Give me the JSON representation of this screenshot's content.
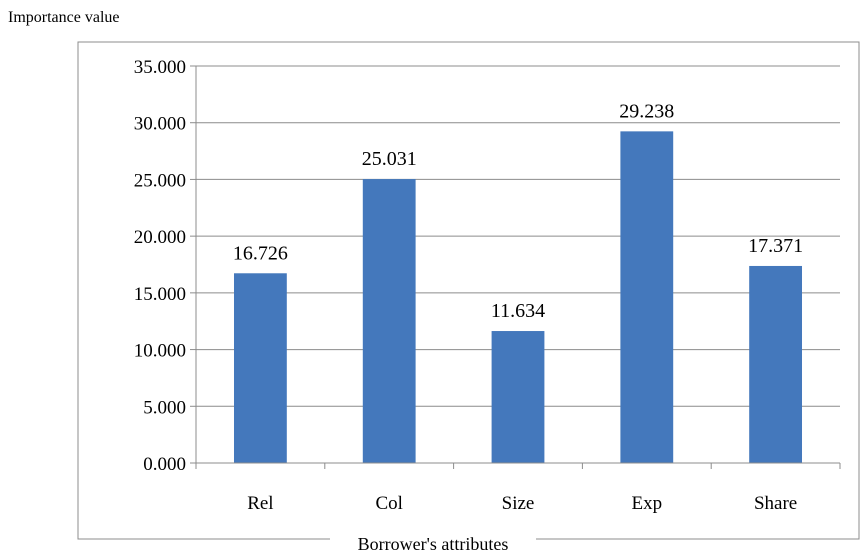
{
  "chart_data": {
    "type": "bar",
    "title": "",
    "ylabel": "Importance value",
    "xlabel": "Borrower's attributes",
    "categories": [
      "Rel",
      "Col",
      "Size",
      "Exp",
      "Share"
    ],
    "values": [
      16.726,
      25.031,
      11.634,
      29.238,
      17.371
    ],
    "data_labels": [
      "16.726",
      "25.031",
      "11.634",
      "29.238",
      "17.371"
    ],
    "ylim": [
      0,
      35
    ],
    "yticks": [
      0,
      5,
      10,
      15,
      20,
      25,
      30,
      35
    ],
    "ytick_labels": [
      "0.000",
      "5.000",
      "10.000",
      "15.000",
      "20.000",
      "25.000",
      "30.000",
      "35.000"
    ],
    "grid": true,
    "legend": "none",
    "bar_color": "#4478BC",
    "gridline_color": "#8c8c8c"
  }
}
